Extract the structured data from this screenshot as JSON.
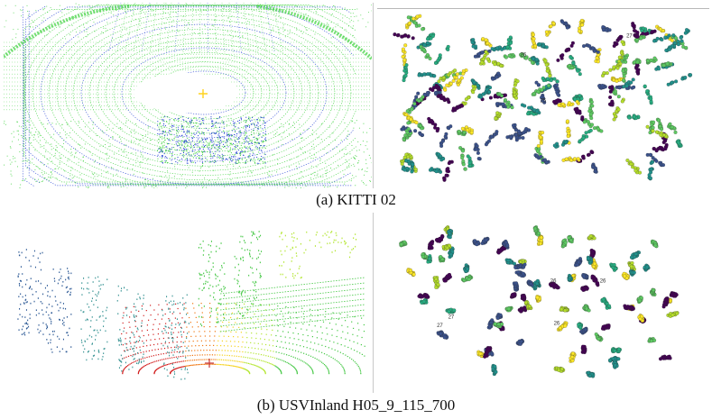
{
  "figure": {
    "captions": {
      "top": "(a) KITTI 02",
      "bottom": "(b) USVInland H05_9_115_700"
    },
    "panels": [
      {
        "id": "kitti-pointcloud",
        "kind": "lidar-scan-render"
      },
      {
        "id": "kitti-tsne",
        "kind": "embedding-scatter"
      },
      {
        "id": "usv-pointcloud",
        "kind": "lidar-scan-render"
      },
      {
        "id": "usv-tsne",
        "kind": "embedding-scatter"
      }
    ],
    "colors": {
      "lidar_green": "#3cd23c",
      "lidar_blue": "#1e3cd2",
      "viridis": [
        "#440154",
        "#3b528b",
        "#21918c",
        "#27ad81",
        "#5ec962",
        "#b5de2b",
        "#fde725"
      ],
      "jet_ramp": [
        "#d21e1e",
        "#f07814",
        "#f5d21e",
        "#b4e632",
        "#46c846",
        "#3c9696",
        "#2d5a96"
      ],
      "marker_yellow": "#ffd21e"
    },
    "cluster_tags_top": [
      "26",
      "27",
      "25"
    ],
    "cluster_tags_bottom": [
      "26",
      "27",
      "26",
      "27",
      "26"
    ]
  }
}
